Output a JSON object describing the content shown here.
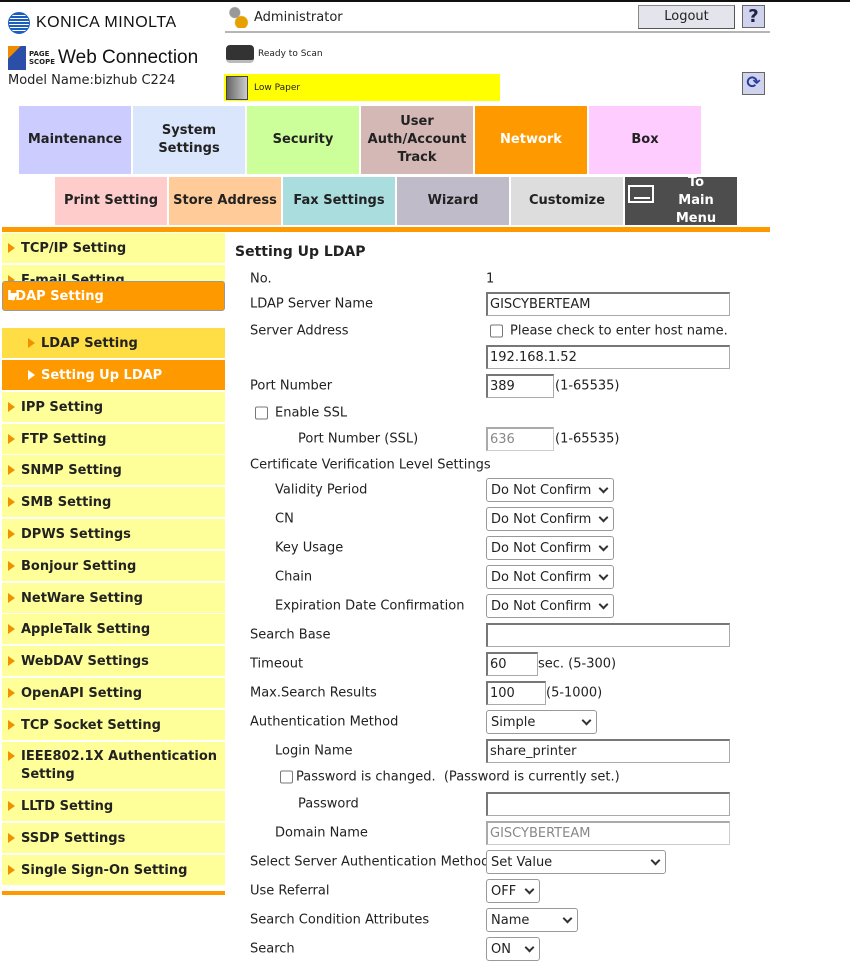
{
  "header": {
    "brand": "KONICA MINOLTA",
    "product_small_1": "PAGE",
    "product_small_2": "SCOPE",
    "product": "Web Connection",
    "model": "Model Name:bizhub C224",
    "user": "Administrator",
    "logout": "Logout",
    "help": "?",
    "status_scan": "Ready to Scan",
    "status_printer": "Low Paper",
    "status_printer_color": "#ffff00"
  },
  "tabs_row1": [
    {
      "label": "Maintenance",
      "color": "#ccccff"
    },
    {
      "label": "System Settings",
      "color": "#d9e6fb"
    },
    {
      "label": "Security",
      "color": "#ccff99"
    },
    {
      "label": "User Auth/Account Track",
      "color": "#d3b8b5"
    },
    {
      "label": "Network",
      "color": "#ff9900",
      "active": true
    },
    {
      "label": "Box",
      "color": "#ffccff"
    }
  ],
  "tabs_row2": [
    {
      "label": "Print Setting",
      "color": "#ffcccc"
    },
    {
      "label": "Store Address",
      "color": "#ffcc99"
    },
    {
      "label": "Fax Settings",
      "color": "#aadddd"
    },
    {
      "label": "Wizard",
      "color": "#bfbbc8"
    },
    {
      "label": "Customize",
      "color": "#dddddd"
    },
    {
      "label": "To Main Menu",
      "color": "#4d4d4d"
    }
  ],
  "sidebar": [
    "TCP/IP Setting",
    "E-mail Setting",
    "LDAP Setting",
    "LDAP Setting",
    "Setting Up LDAP",
    "IPP Setting",
    "FTP Setting",
    "SNMP Setting",
    "SMB Setting",
    "DPWS Settings",
    "Bonjour Setting",
    "NetWare Setting",
    "AppleTalk Setting",
    "WebDAV Settings",
    "OpenAPI Setting",
    "TCP Socket Setting",
    "IEEE802.1X Authentication Setting",
    "LLTD Setting",
    "SSDP Settings",
    "Single Sign-On Setting"
  ],
  "form": {
    "title": "Setting Up LDAP",
    "no_label": "No.",
    "no_value": "1",
    "server_name_label": "LDAP Server Name",
    "server_name": "GISCYBERTEAM",
    "server_address_label": "Server Address",
    "host_check_label": "Please check to enter host name.",
    "server_address": "192.168.1.52",
    "port_label": "Port Number",
    "port": "389",
    "port_range": "(1-65535)",
    "ssl_label": "Enable SSL",
    "ssl_port_label": "Port Number (SSL)",
    "ssl_port": "636",
    "ssl_port_range": "(1-65535)",
    "cert_label": "Certificate Verification Level Settings",
    "validity_label": "Validity Period",
    "validity": "Do Not Confirm",
    "cn_label": "CN",
    "cn": "Do Not Confirm",
    "key_usage_label": "Key Usage",
    "key_usage": "Do Not Confirm",
    "chain_label": "Chain",
    "chain": "Do Not Confirm",
    "expiration_label": "Expiration Date Confirmation",
    "expiration": "Do Not Confirm",
    "search_base_label": "Search Base",
    "search_base": "",
    "timeout_label": "Timeout",
    "timeout": "60",
    "timeout_range": "sec. (5-300)",
    "max_results_label": "Max.Search Results",
    "max_results": "100",
    "max_results_range": "(5-1000)",
    "auth_method_label": "Authentication Method",
    "auth_method": "Simple",
    "login_label": "Login Name",
    "login": "share_printer",
    "pw_changed_label": "Password is changed.  (Password is currently set.)",
    "password_label": "Password",
    "password": "",
    "domain_label": "Domain Name",
    "domain": "GISCYBERTEAM",
    "server_auth_label": "Select Server Authentication Method",
    "server_auth": "Set Value",
    "referral_label": "Use Referral",
    "referral": "OFF",
    "search_attr_label": "Search Condition Attributes",
    "search_attr": "Name",
    "search_label": "Search",
    "search": "ON"
  }
}
